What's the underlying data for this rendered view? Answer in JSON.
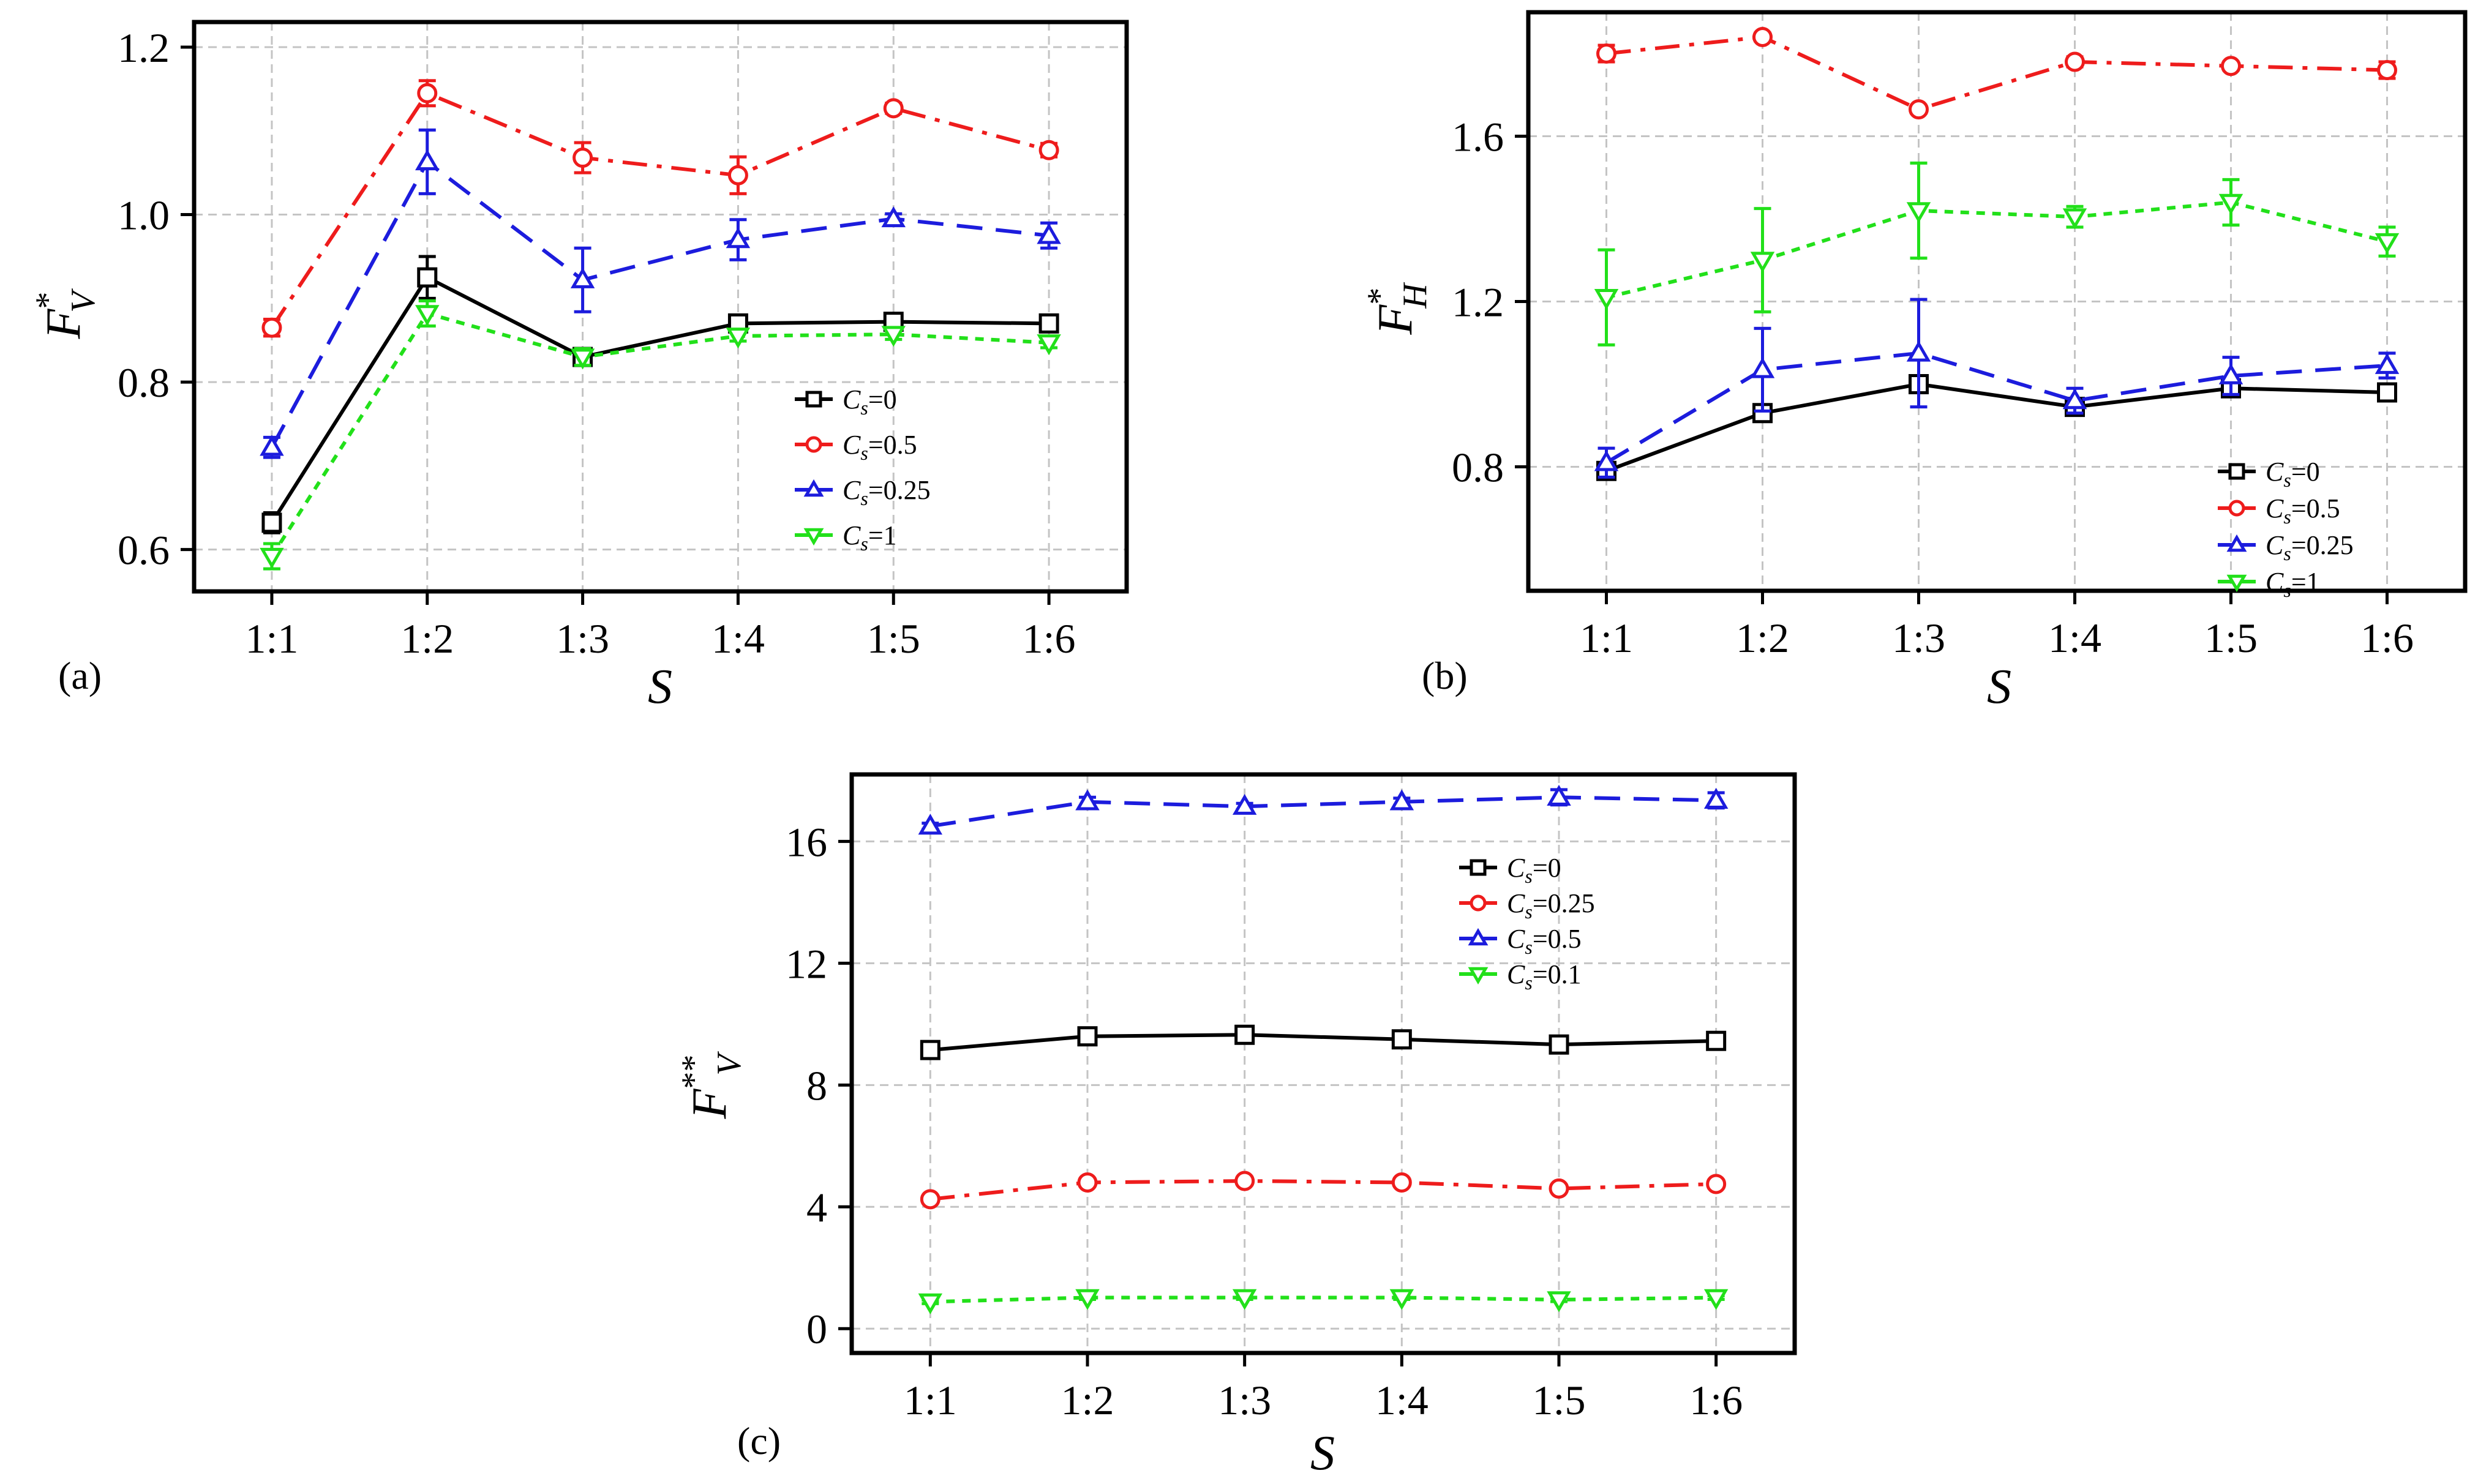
{
  "chart_data": [
    {
      "type": "line",
      "panel_label": "(a)",
      "xlabel": "S",
      "ylabel": {
        "base": "F",
        "sup": "*",
        "sub": "V"
      },
      "categories": [
        "1:1",
        "1:2",
        "1:3",
        "1:4",
        "1:5",
        "1:6"
      ],
      "ylim": [
        0.55,
        1.23
      ],
      "yticks": [
        0.6,
        0.8,
        1.0,
        1.2
      ],
      "ytick_labels": [
        "0.6",
        "0.8",
        "1.0",
        "1.2"
      ],
      "grid": true,
      "legend_position": "center-right",
      "series": [
        {
          "name": "C_s=0",
          "label_main": "C",
          "label_sub": "s",
          "label_value": "=0",
          "color": "#000000",
          "marker": "square",
          "dash": "solid",
          "values": [
            0.632,
            0.925,
            0.83,
            0.87,
            0.872,
            0.87
          ],
          "errors": [
            0.012,
            0.025,
            0.01,
            0.006,
            0.006,
            0.006
          ]
        },
        {
          "name": "C_s=0.5",
          "label_main": "C",
          "label_sub": "s",
          "label_value": "=0.5",
          "color": "#ee1c1c",
          "marker": "circle",
          "dash": "dashdot",
          "values": [
            0.865,
            1.145,
            1.068,
            1.047,
            1.127,
            1.077
          ],
          "errors": [
            0.01,
            0.015,
            0.018,
            0.022,
            0.006,
            0.008
          ]
        },
        {
          "name": "C_s=0.25",
          "label_main": "C",
          "label_sub": "s",
          "label_value": "=0.25",
          "color": "#1c1cdd",
          "marker": "triangle-up",
          "dash": "dashed",
          "values": [
            0.722,
            1.063,
            0.922,
            0.97,
            0.995,
            0.975
          ],
          "errors": [
            0.012,
            0.038,
            0.038,
            0.024,
            0.006,
            0.015
          ]
        },
        {
          "name": "C_s=1",
          "label_main": "C",
          "label_sub": "s",
          "label_value": "=1",
          "color": "#22e01a",
          "marker": "triangle-down",
          "dash": "dotted",
          "values": [
            0.592,
            0.882,
            0.83,
            0.855,
            0.857,
            0.847
          ],
          "errors": [
            0.015,
            0.015,
            0.01,
            0.006,
            0.006,
            0.006
          ]
        }
      ]
    },
    {
      "type": "line",
      "panel_label": "(b)",
      "xlabel": "S",
      "ylabel": {
        "base": "F",
        "sup": "*",
        "sub": "H"
      },
      "categories": [
        "1:1",
        "1:2",
        "1:3",
        "1:4",
        "1:5",
        "1:6"
      ],
      "ylim": [
        0.5,
        1.9
      ],
      "yticks": [
        0.8,
        1.2,
        1.6
      ],
      "ytick_labels": [
        "0.8",
        "1.2",
        "1.6"
      ],
      "grid": true,
      "legend_position": "bottom-right",
      "series": [
        {
          "name": "C_s=0",
          "label_main": "C",
          "label_sub": "s",
          "label_value": "=0",
          "color": "#000000",
          "marker": "square",
          "dash": "solid",
          "values": [
            0.79,
            0.93,
            1.0,
            0.945,
            0.99,
            0.98
          ],
          "errors": [
            0.02,
            0.012,
            0.02,
            0.012,
            0.018,
            0.018
          ]
        },
        {
          "name": "C_s=0.5",
          "label_main": "C",
          "label_sub": "s",
          "label_value": "=0.5",
          "color": "#ee1c1c",
          "marker": "circle",
          "dash": "dashdot",
          "values": [
            1.8,
            1.84,
            1.665,
            1.78,
            1.77,
            1.76
          ],
          "errors": [
            0.02,
            0.01,
            0.01,
            0.012,
            0.01,
            0.02
          ]
        },
        {
          "name": "C_s=0.25",
          "label_main": "C",
          "label_sub": "s",
          "label_value": "=0.25",
          "color": "#1c1cdd",
          "marker": "triangle-up",
          "dash": "dashed",
          "values": [
            0.81,
            1.035,
            1.075,
            0.96,
            1.02,
            1.045
          ],
          "errors": [
            0.035,
            0.1,
            0.13,
            0.03,
            0.045,
            0.03
          ]
        },
        {
          "name": "C_s=1",
          "label_main": "C",
          "label_sub": "s",
          "label_value": "=1",
          "color": "#22e01a",
          "marker": "triangle-down",
          "dash": "dotted",
          "values": [
            1.21,
            1.3,
            1.42,
            1.405,
            1.44,
            1.345
          ],
          "errors": [
            0.115,
            0.125,
            0.115,
            0.025,
            0.055,
            0.035
          ]
        }
      ]
    },
    {
      "type": "line",
      "panel_label": "(c)",
      "xlabel": "S",
      "ylabel": {
        "base": "F",
        "sup": "**",
        "sub": "V"
      },
      "categories": [
        "1:1",
        "1:2",
        "1:3",
        "1:4",
        "1:5",
        "1:6"
      ],
      "ylim": [
        -0.8,
        18.2
      ],
      "yticks": [
        0,
        4,
        8,
        12,
        16
      ],
      "ytick_labels": [
        "0",
        "4",
        "8",
        "12",
        "16"
      ],
      "grid": true,
      "legend_position": "top-right",
      "series": [
        {
          "name": "C_s=0",
          "label_main": "C",
          "label_sub": "s",
          "label_value": "=0",
          "color": "#000000",
          "marker": "square",
          "dash": "solid",
          "values": [
            9.15,
            9.6,
            9.65,
            9.5,
            9.33,
            9.45
          ],
          "errors": [
            0.12,
            0.12,
            0.12,
            0.12,
            0.12,
            0.12
          ]
        },
        {
          "name": "C_s=0.25",
          "label_main": "C",
          "label_sub": "s",
          "label_value": "=0.25",
          "color": "#ee1c1c",
          "marker": "circle",
          "dash": "dashdot",
          "values": [
            4.25,
            4.8,
            4.85,
            4.8,
            4.6,
            4.75
          ],
          "errors": [
            0.1,
            0.1,
            0.1,
            0.1,
            0.1,
            0.1
          ]
        },
        {
          "name": "C_s=0.5",
          "label_main": "C",
          "label_sub": "s",
          "label_value": "=0.5",
          "color": "#1c1cdd",
          "marker": "triangle-up",
          "dash": "dashed",
          "values": [
            16.5,
            17.3,
            17.15,
            17.3,
            17.45,
            17.35
          ],
          "errors": [
            0.1,
            0.15,
            0.1,
            0.12,
            0.25,
            0.25
          ]
        },
        {
          "name": "C_s=0.1",
          "label_main": "C",
          "label_sub": "s",
          "label_value": "=0.1",
          "color": "#22e01a",
          "marker": "triangle-down",
          "dash": "dotted",
          "values": [
            0.88,
            1.02,
            1.02,
            1.02,
            0.95,
            1.02
          ],
          "errors": [
            0.06,
            0.06,
            0.06,
            0.06,
            0.06,
            0.06
          ]
        }
      ]
    }
  ]
}
